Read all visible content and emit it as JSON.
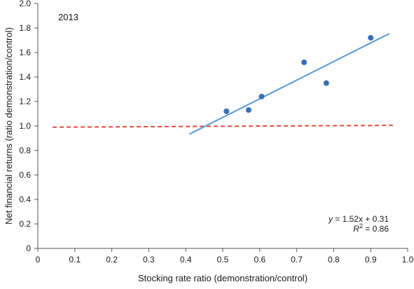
{
  "chart_data": {
    "type": "scatter",
    "panel_label": "2013",
    "xlabel": "Stocking rate ratio (demonstration/control)",
    "ylabel": "Net financial returns (ratio demonstration/control)",
    "xlim": [
      0,
      1.0
    ],
    "ylim": [
      0,
      2.0
    ],
    "x_ticks": [
      0,
      0.1,
      0.2,
      0.3,
      0.4,
      0.5,
      0.6,
      0.7,
      0.8,
      0.9,
      1.0
    ],
    "x_tick_labels": [
      "0",
      "0.1",
      "0.2",
      "0.3",
      "0.4",
      "0.5",
      "0.6",
      "0.7",
      "0.8",
      "0.9",
      "1.0"
    ],
    "y_ticks": [
      0,
      0.2,
      0.4,
      0.6,
      0.8,
      1.0,
      1.2,
      1.4,
      1.6,
      1.8,
      2.0
    ],
    "y_tick_labels": [
      "0",
      "0.2",
      "0.4",
      "0.6",
      "0.8",
      "1.0",
      "1.2",
      "1.4",
      "1.6",
      "1.8",
      "2.0"
    ],
    "grid": false,
    "points": [
      {
        "x": 0.51,
        "y": 1.12
      },
      {
        "x": 0.57,
        "y": 1.13
      },
      {
        "x": 0.605,
        "y": 1.24
      },
      {
        "x": 0.72,
        "y": 1.52
      },
      {
        "x": 0.78,
        "y": 1.35
      },
      {
        "x": 0.9,
        "y": 1.72
      }
    ],
    "regression": {
      "slope": 1.52,
      "intercept": 0.31,
      "x_range": [
        0.41,
        0.95
      ],
      "equation_text": "y = 1.52x + 0.31",
      "r2_text": "R2 = 0.86"
    },
    "reference_line": {
      "x_range": [
        0.04,
        0.96
      ],
      "y_values": [
        0.99,
        1.005
      ],
      "style": "dashed"
    },
    "colors": {
      "points": "#3a6fb8",
      "regression": "#5b9bd5",
      "reference": "#e04b3c",
      "axis": "#555555"
    }
  }
}
